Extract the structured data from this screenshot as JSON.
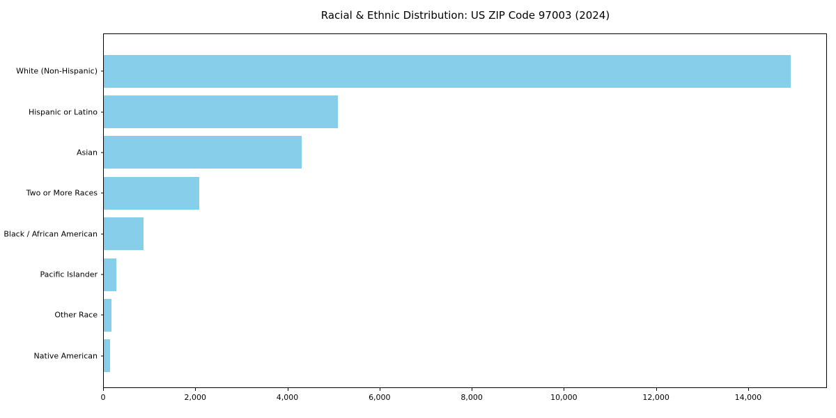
{
  "chart_data": {
    "type": "bar",
    "orientation": "horizontal",
    "title": "Racial & Ethnic Distribution: US ZIP Code 97003 (2024)",
    "categories": [
      "White (Non-Hispanic)",
      "Hispanic or Latino",
      "Asian",
      "Two or More Races",
      "Black / African American",
      "Pacific Islander",
      "Other Race",
      "Native American"
    ],
    "values": [
      14930,
      5090,
      4300,
      2080,
      860,
      280,
      165,
      140
    ],
    "xlabel": "",
    "ylabel": "",
    "xlim": [
      0,
      15710
    ],
    "xticks": [
      0,
      2000,
      4000,
      6000,
      8000,
      10000,
      12000,
      14000
    ],
    "xtick_labels": [
      "0",
      "2,000",
      "4,000",
      "6,000",
      "8,000",
      "10,000",
      "12,000",
      "14,000"
    ],
    "bar_color": "#87ceeb",
    "background_color": "#ffffff",
    "spine_color": "#000000",
    "text_color": "#000000",
    "grid": false,
    "legend": null
  }
}
